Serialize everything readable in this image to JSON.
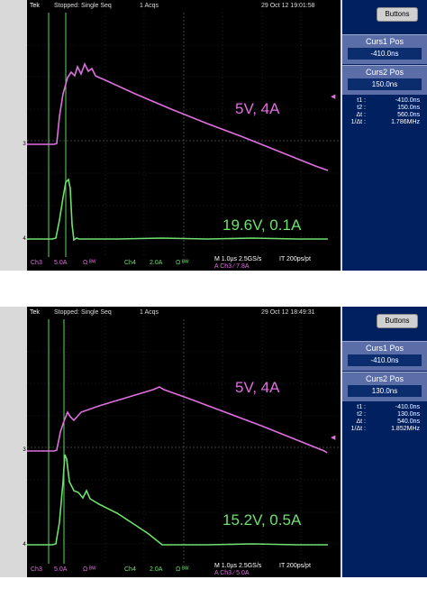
{
  "panels": [
    {
      "header": {
        "brand": "Tek",
        "state": "Stopped: Single Seq",
        "acqs": "1 Acqs",
        "datetime": "29 Oct 12 19:01:58"
      },
      "buttons_label": "Buttons",
      "curs1": {
        "label": "Curs1 Pos",
        "value": "-410.0ns"
      },
      "curs2": {
        "label": "Curs2 Pos",
        "value": "150.0ns"
      },
      "measurements": [
        {
          "k": "t1 :",
          "v": "-410.0ns"
        },
        {
          "k": "t2 :",
          "v": "150.0ns"
        },
        {
          "k": "Δt :",
          "v": "560.0ns"
        },
        {
          "k": "1/Δt :",
          "v": "1.786MHz"
        }
      ],
      "trace_labels": {
        "pink": "5V, 4A",
        "green": "19.6V, 0.1A"
      },
      "status": {
        "ch3": "Ch3",
        "ch3_scale": "5.0A",
        "ch3_sym": "Ω ᴮᵂ",
        "ch4": "Ch4",
        "ch4_scale": "2.0A",
        "ch4_sym": "Ω ᴮᵂ",
        "timebase": "M 1.0µs 2.5GS/s",
        "res": "IT 200ps/pt",
        "trigger": "A Ch3 ∕ 7.8A"
      },
      "colors": {
        "pink": "#e070e0",
        "green": "#6fe06f"
      }
    },
    {
      "header": {
        "brand": "Tek",
        "state": "Stopped: Single Seq",
        "acqs": "1 Acqs",
        "datetime": "29 Oct 12 18:49:31"
      },
      "buttons_label": "Buttons",
      "curs1": {
        "label": "Curs1 Pos",
        "value": "-410.0ns"
      },
      "curs2": {
        "label": "Curs2 Pos",
        "value": "130.0ns"
      },
      "measurements": [
        {
          "k": "t1 :",
          "v": "-410.0ns"
        },
        {
          "k": "t2 :",
          "v": "130.0ns"
        },
        {
          "k": "Δt :",
          "v": "540.0ns"
        },
        {
          "k": "1/Δt :",
          "v": "1.852MHz"
        }
      ],
      "trace_labels": {
        "pink": "5V, 4A",
        "green": "15.2V, 0.5A"
      },
      "status": {
        "ch3": "Ch3",
        "ch3_scale": "5.0A",
        "ch3_sym": "Ω ᴮᵂ",
        "ch4": "Ch4",
        "ch4_scale": "2.0A",
        "ch4_sym": "Ω ᴮᵂ",
        "timebase": "M 1.0µs 2.5GS/s",
        "res": "IT 200ps/pt",
        "trigger": "A Ch3 ∕ 5.0A"
      },
      "colors": {
        "pink": "#e070e0",
        "green": "#6fe06f"
      }
    }
  ]
}
